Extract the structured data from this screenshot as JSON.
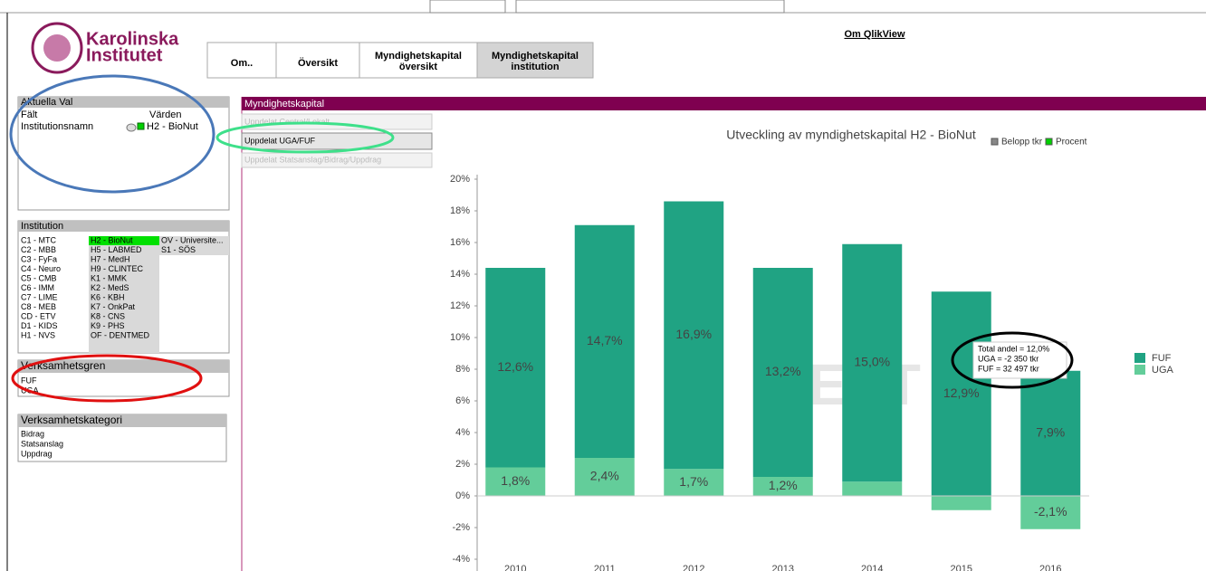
{
  "header": {
    "logo": [
      "Karolinska",
      "Institutet"
    ],
    "tabs": [
      [
        "Om.."
      ],
      [
        "Översikt"
      ],
      [
        "Myndighetskapital",
        "översikt"
      ],
      [
        "Myndighetskapital",
        "institution"
      ]
    ],
    "link": "Om QlikView"
  },
  "current_selections": {
    "title": "Aktuella Val",
    "field_header": "Fält",
    "value_header": "Värden",
    "field": "Institutionsnamn",
    "value": "H2 - BioNut"
  },
  "institution": {
    "title": "Institution",
    "columns": [
      [
        "C1 - MTC",
        "C2 - MBB",
        "C3 - FyFa",
        "C4 - Neuro",
        "C5 - CMB",
        "C6 - IMM",
        "C7 - LIME",
        "C8 - MEB",
        "CD - ETV",
        "D1 - KIDS",
        "H1 - NVS"
      ],
      [
        "H2 - BioNut",
        "H5 - LABMED",
        "H7 - MedH",
        "H9 - CLINTEC",
        "K1 - MMK",
        "K2 - MedS",
        "K6 - KBH",
        "K7 - OnkPat",
        "K8 - CNS",
        "K9 - PHS",
        "OF - DENTMED"
      ],
      [
        "OV - Universite...",
        "S1 - SÖS"
      ]
    ]
  },
  "verksamhetsgren": {
    "title": "Verksamhetsgren",
    "items": [
      "FUF",
      "UGA"
    ]
  },
  "verksamhetskategori": {
    "title": "Verksamhetskategori",
    "items": [
      "Bidrag",
      "Statsanslag",
      "Uppdrag"
    ]
  },
  "sheet": {
    "title": "Myndighetskapital",
    "buttons": [
      "Uppdelat Central/Lokalt",
      "Uppdelat UGA/FUF",
      "Uppdelat Statsanslag/Bidrag/Uppdrag"
    ]
  },
  "chart_data": {
    "type": "stacked_bar",
    "title": "Utveckling av myndighetskapital H2 - BioNut",
    "top_legend": [
      "Belopp tkr",
      "Procent"
    ],
    "watermark": "TEST",
    "tooltip": [
      "Total andel = 12,0%",
      "UGA = -2 350 tkr",
      "FUF = 32 497 tkr"
    ],
    "categories": [
      "2010",
      "2011",
      "2012",
      "2013",
      "2014",
      "2015",
      "2016"
    ],
    "series": [
      {
        "name": "UGA",
        "color": "#63cd9a",
        "values": [
          1.8,
          2.4,
          1.7,
          1.2,
          0.9,
          -0.9,
          -2.1
        ],
        "value_labels": [
          "1,8%",
          "2,4%",
          "1,7%",
          "1,2%",
          null,
          null,
          "-2,1%"
        ]
      },
      {
        "name": "FUF",
        "color": "#20a383",
        "values": [
          12.6,
          14.7,
          16.9,
          13.2,
          15.0,
          12.9,
          7.9
        ],
        "value_labels": [
          "12,6%",
          "14,7%",
          "16,9%",
          "13,2%",
          "15,0%",
          "12,9%",
          "7,9%"
        ]
      }
    ],
    "ylim": [
      -4,
      20
    ],
    "yticks": [
      {
        "value": -4,
        "label": "-4%"
      },
      {
        "value": -2,
        "label": "-2%"
      },
      {
        "value": 0,
        "label": "0%"
      },
      {
        "value": 2,
        "label": "2%"
      },
      {
        "value": 4,
        "label": "4%"
      },
      {
        "value": 6,
        "label": "6%"
      },
      {
        "value": 8,
        "label": "8%"
      },
      {
        "value": 10,
        "label": "10%"
      },
      {
        "value": 12,
        "label": "12%"
      },
      {
        "value": 14,
        "label": "14%"
      },
      {
        "value": 16,
        "label": "16%"
      },
      {
        "value": 18,
        "label": "18%"
      },
      {
        "value": 20,
        "label": "20%"
      }
    ]
  }
}
